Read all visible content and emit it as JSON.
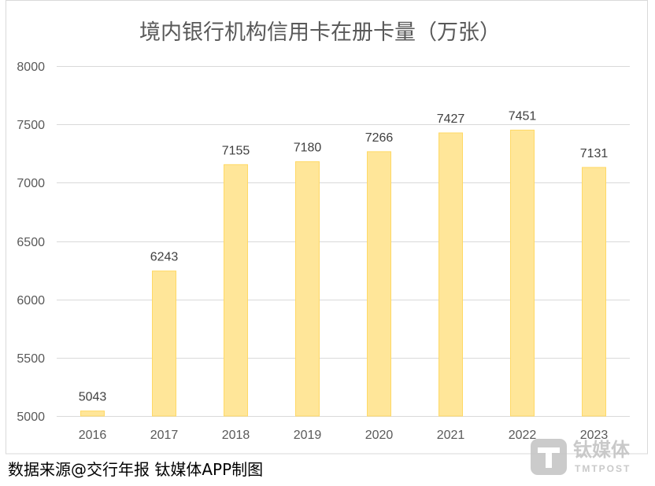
{
  "chart_data": {
    "type": "bar",
    "title": "境内银行机构信用卡在册卡量（万张）",
    "categories": [
      "2016",
      "2017",
      "2018",
      "2019",
      "2020",
      "2021",
      "2022",
      "2023"
    ],
    "values": [
      5043,
      6243,
      7155,
      7180,
      7266,
      7427,
      7451,
      7131
    ],
    "xlabel": "",
    "ylabel": "",
    "ylim": [
      5000,
      8000
    ],
    "yticks": [
      5000,
      5500,
      6000,
      6500,
      7000,
      7500,
      8000
    ],
    "grid": true,
    "data_labels": true,
    "colors": {
      "bar_fill": "#FFE699",
      "bar_stroke": "#FFD966",
      "gridline": "#D9D9D9",
      "frame": "#D9D9D9",
      "axis_text": "#595959",
      "data_label_text": "#404040",
      "title_text": "#595959"
    }
  },
  "footer": {
    "source_note": "数据来源@交行年报 钛媒体APP制图"
  },
  "watermark": {
    "logo_icon": "tmtpost-t-logo-icon",
    "brand_cn": "钛媒体",
    "brand_en": "TMTPOST"
  }
}
